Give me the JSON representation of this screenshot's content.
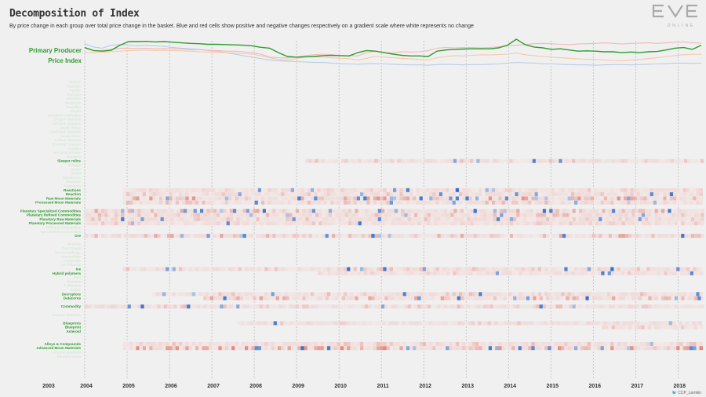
{
  "page": {
    "title": "Decomposition of Index",
    "subtitle": "By price change in each group over total price change in the basket. Blue and red cells show positive and negative changes respectively on a gradient scale where white represents no change",
    "logo_text": "ONLINE",
    "credit_handle": "CCP_Larrikin"
  },
  "colors": {
    "index_line": "#2e9c2e",
    "pink_line": "#f2b9b9",
    "blue_line": "#b9cde6",
    "orange_line": "#f6c9a8",
    "positive": "#1f5fc6",
    "negative": "#d63a2a",
    "active_label": "#2e9c2e",
    "inactive_label": "#cde5cd",
    "background": "#f0f0f0"
  },
  "chart_data": {
    "type": "heatmap",
    "title": "Decomposition of Index",
    "series_label_line1": "Primary Producer",
    "series_label_line2": "Price Index",
    "x_ticks": [
      "2003",
      "2004",
      "2005",
      "2006",
      "2007",
      "2008",
      "2009",
      "2010",
      "2011",
      "2012",
      "2013",
      "2014",
      "2015",
      "2016",
      "2017",
      "2018"
    ],
    "index_line": [
      0.72,
      0.62,
      0.6,
      0.63,
      0.8,
      0.92,
      0.92,
      0.93,
      0.91,
      0.92,
      0.9,
      0.88,
      0.86,
      0.85,
      0.83,
      0.83,
      0.82,
      0.81,
      0.8,
      0.78,
      0.73,
      0.7,
      0.55,
      0.42,
      0.4,
      0.41,
      0.42,
      0.45,
      0.46,
      0.45,
      0.44,
      0.55,
      0.62,
      0.6,
      0.55,
      0.5,
      0.46,
      0.44,
      0.44,
      0.42,
      0.6,
      0.64,
      0.66,
      0.67,
      0.68,
      0.68,
      0.68,
      0.71,
      0.8,
      1.0,
      0.82,
      0.74,
      0.71,
      0.66,
      0.68,
      0.64,
      0.6,
      0.61,
      0.6,
      0.58,
      0.58,
      0.55,
      0.57,
      0.55,
      0.58,
      0.59,
      0.64,
      0.7,
      0.72,
      0.66,
      0.8
    ],
    "pink_line": [
      0.7,
      0.62,
      0.62,
      0.66,
      0.7,
      0.7,
      0.69,
      0.7,
      0.68,
      0.69,
      0.68,
      0.67,
      0.65,
      0.65,
      0.63,
      0.62,
      0.6,
      0.6,
      0.58,
      0.55,
      0.5,
      0.4,
      0.38,
      0.37,
      0.4,
      0.45,
      0.48,
      0.5,
      0.48,
      0.46,
      0.45,
      0.44,
      0.55,
      0.6,
      0.54,
      0.55,
      0.58,
      0.57,
      0.58,
      0.62,
      0.7,
      0.72,
      0.71,
      0.72,
      0.72,
      0.71,
      0.72,
      0.75,
      0.78,
      0.8,
      0.82,
      0.85,
      0.86,
      0.85,
      0.83,
      0.82,
      0.84,
      0.85,
      0.86,
      0.88,
      0.86,
      0.84,
      0.86,
      0.87,
      0.88,
      0.86,
      0.88,
      0.9,
      0.91,
      0.88,
      0.87
    ],
    "blue_line": [
      0.85,
      0.74,
      0.7,
      0.8,
      0.82,
      0.8,
      0.78,
      0.8,
      0.78,
      0.76,
      0.72,
      0.7,
      0.68,
      0.66,
      0.62,
      0.6,
      0.55,
      0.5,
      0.45,
      0.4,
      0.35,
      0.3,
      0.28,
      0.26,
      0.25,
      0.24,
      0.22,
      0.22,
      0.2,
      0.18,
      0.17,
      0.16,
      0.18,
      0.18,
      0.17,
      0.16,
      0.15,
      0.14,
      0.14,
      0.13,
      0.15,
      0.16,
      0.15,
      0.14,
      0.15,
      0.15,
      0.16,
      0.17,
      0.2,
      0.22,
      0.21,
      0.2,
      0.18,
      0.17,
      0.16,
      0.15,
      0.14,
      0.14,
      0.13,
      0.14,
      0.15,
      0.15,
      0.14,
      0.15,
      0.16,
      0.17,
      0.18,
      0.2,
      0.2,
      0.19,
      0.2
    ],
    "orange_line": [
      0.55,
      0.55,
      0.56,
      0.58,
      0.6,
      0.62,
      0.63,
      0.64,
      0.62,
      0.63,
      0.62,
      0.61,
      0.6,
      0.58,
      0.57,
      0.56,
      0.55,
      0.54,
      0.52,
      0.5,
      0.45,
      0.38,
      0.32,
      0.3,
      0.35,
      0.4,
      0.42,
      0.4,
      0.38,
      0.36,
      0.35,
      0.3,
      0.36,
      0.42,
      0.4,
      0.38,
      0.36,
      0.34,
      0.32,
      0.3,
      0.38,
      0.42,
      0.45,
      0.44,
      0.46,
      0.48,
      0.47,
      0.49,
      0.5,
      0.54,
      0.48,
      0.45,
      0.42,
      0.4,
      0.38,
      0.36,
      0.34,
      0.33,
      0.32,
      0.3,
      0.29,
      0.28,
      0.3,
      0.32,
      0.35,
      0.38,
      0.42,
      0.45,
      0.48,
      0.5,
      0.49
    ],
    "rows": [
      {
        "label": "Zydrine",
        "active": false,
        "start": null,
        "intensity": 0
      },
      {
        "label": "Tritanium",
        "active": false,
        "start": null,
        "intensity": 0
      },
      {
        "label": "Pyerite",
        "active": false,
        "start": null,
        "intensity": 0
      },
      {
        "label": "Nocxium",
        "active": false,
        "start": null,
        "intensity": 0
      },
      {
        "label": "Morphite",
        "active": false,
        "start": null,
        "intensity": 0
      },
      {
        "label": "Megacyte",
        "active": false,
        "start": null,
        "intensity": 0
      },
      {
        "label": "Mexallon",
        "active": false,
        "start": null,
        "intensity": 0
      },
      {
        "label": "Isogen",
        "active": false,
        "start": null,
        "intensity": 0
      },
      {
        "label": "Strontium Clathrates",
        "active": false,
        "start": null,
        "intensity": 0
      },
      {
        "label": "Oxygen Isotopes",
        "active": false,
        "start": null,
        "intensity": 0
      },
      {
        "label": "Nitrogen Isotopes",
        "active": false,
        "start": null,
        "intensity": 0
      },
      {
        "label": "Liquid Ozone",
        "active": false,
        "start": null,
        "intensity": 0
      },
      {
        "label": "Hydrogen Isotopes",
        "active": false,
        "start": null,
        "intensity": 0
      },
      {
        "label": "Heavy Water",
        "active": false,
        "start": null,
        "intensity": 0
      },
      {
        "label": "Helium Isotopes",
        "active": false,
        "start": null,
        "intensity": 0
      },
      {
        "label": "Enriched Uranium",
        "active": false,
        "start": null,
        "intensity": 0
      },
      {
        "label": "Coolant",
        "active": false,
        "start": null,
        "intensity": 0
      },
      {
        "label": "Mechanical Parts",
        "active": false,
        "start": null,
        "intensity": 0
      },
      {
        "label": "Robotics",
        "active": false,
        "start": null,
        "intensity": 0
      },
      {
        "label": "Sleeper relics",
        "active": true,
        "start": 2009.2,
        "intensity": 0.25
      },
      {
        "label": "Salvage",
        "active": false,
        "start": null,
        "intensity": 0
      },
      {
        "label": "Armor",
        "active": false,
        "start": null,
        "intensity": 0
      },
      {
        "label": "Shield",
        "active": false,
        "start": null,
        "intensity": 0
      },
      {
        "label": "Electronics",
        "active": false,
        "start": null,
        "intensity": 0
      },
      {
        "label": "Structure",
        "active": false,
        "start": null,
        "intensity": 0
      },
      {
        "label": "Propulsion",
        "active": false,
        "start": null,
        "intensity": 0
      },
      {
        "label": "Reactions",
        "active": true,
        "start": 2004.9,
        "intensity": 0.2
      },
      {
        "label": "Reaction",
        "active": true,
        "start": 2004.9,
        "intensity": 0.25
      },
      {
        "label": "Raw Moon Materials",
        "active": true,
        "start": 2004.9,
        "intensity": 0.75
      },
      {
        "label": "Processed Moon Materials",
        "active": true,
        "start": 2004.9,
        "intensity": 0.35
      },
      {
        "label": "",
        "active": false,
        "start": null,
        "intensity": 0
      },
      {
        "label": "Planetary Specialized Commodities",
        "active": true,
        "start": 2003.0,
        "intensity": 0.55
      },
      {
        "label": "Planetary Refined Commodities",
        "active": true,
        "start": 2003.0,
        "intensity": 0.35
      },
      {
        "label": "Planetary Raw Materials",
        "active": true,
        "start": 2003.0,
        "intensity": 0.3
      },
      {
        "label": "Planetary Processed Materials",
        "active": true,
        "start": 2003.0,
        "intensity": 0.2
      },
      {
        "label": "Refined Commodities",
        "active": false,
        "start": null,
        "intensity": 0
      },
      {
        "label": "Specialized Commodities",
        "active": false,
        "start": null,
        "intensity": 0
      },
      {
        "label": "Ore",
        "active": true,
        "start": 2003.0,
        "intensity": 0.55
      },
      {
        "label": "",
        "active": false,
        "start": null,
        "intensity": 0
      },
      {
        "label": "Minerals",
        "active": false,
        "start": null,
        "intensity": 0
      },
      {
        "label": "Gas Clouds",
        "active": false,
        "start": null,
        "intensity": 0
      },
      {
        "label": "Ancient Salvage",
        "active": false,
        "start": null,
        "intensity": 0
      },
      {
        "label": "Intermediate",
        "active": false,
        "start": null,
        "intensity": 0
      },
      {
        "label": "Composite",
        "active": false,
        "start": null,
        "intensity": 0
      },
      {
        "label": "Ice Products",
        "active": false,
        "start": null,
        "intensity": 0
      },
      {
        "label": "Ice",
        "active": true,
        "start": 2004.9,
        "intensity": 0.3
      },
      {
        "label": "Hybrid polymers",
        "active": true,
        "start": 2009.5,
        "intensity": 0.2
      },
      {
        "label": "Fuel",
        "active": false,
        "start": null,
        "intensity": 0
      },
      {
        "label": "Biomass",
        "active": false,
        "start": null,
        "intensity": 0
      },
      {
        "label": "Fullerenes",
        "active": false,
        "start": null,
        "intensity": 0
      },
      {
        "label": "Rogue",
        "active": false,
        "start": null,
        "intensity": 0
      },
      {
        "label": "Decryptors",
        "active": true,
        "start": 2005.6,
        "intensity": 0.3
      },
      {
        "label": "Datacores",
        "active": true,
        "start": 2006.8,
        "intensity": 0.6
      },
      {
        "label": "",
        "active": false,
        "start": null,
        "intensity": 0
      },
      {
        "label": "Commodity",
        "active": true,
        "start": 2003.0,
        "intensity": 0.3
      },
      {
        "label": "",
        "active": false,
        "start": null,
        "intensity": 0
      },
      {
        "label": "Booster Materials",
        "active": false,
        "start": null,
        "intensity": 0
      },
      {
        "label": "",
        "active": false,
        "start": null,
        "intensity": 0
      },
      {
        "label": "Blueprints",
        "active": true,
        "start": 2007.6,
        "intensity": 0.2
      },
      {
        "label": "Blueprint",
        "active": true,
        "start": 2016.2,
        "intensity": 0.25
      },
      {
        "label": "Asteroid",
        "active": true,
        "start": null,
        "intensity": 0
      },
      {
        "label": "",
        "active": false,
        "start": null,
        "intensity": 0
      },
      {
        "label": "",
        "active": false,
        "start": null,
        "intensity": 0
      },
      {
        "label": "Alloys & Compounds",
        "active": true,
        "start": 2004.9,
        "intensity": 0.3
      },
      {
        "label": "Advanced Moon Materials",
        "active": true,
        "start": 2004.9,
        "intensity": 0.85
      },
      {
        "label": "Abyssal Materials",
        "active": false,
        "start": null,
        "intensity": 0
      },
      {
        "label": "Structure Parts",
        "active": false,
        "start": null,
        "intensity": 0
      }
    ],
    "grid": "vertical dashed at years",
    "legend": "none"
  }
}
